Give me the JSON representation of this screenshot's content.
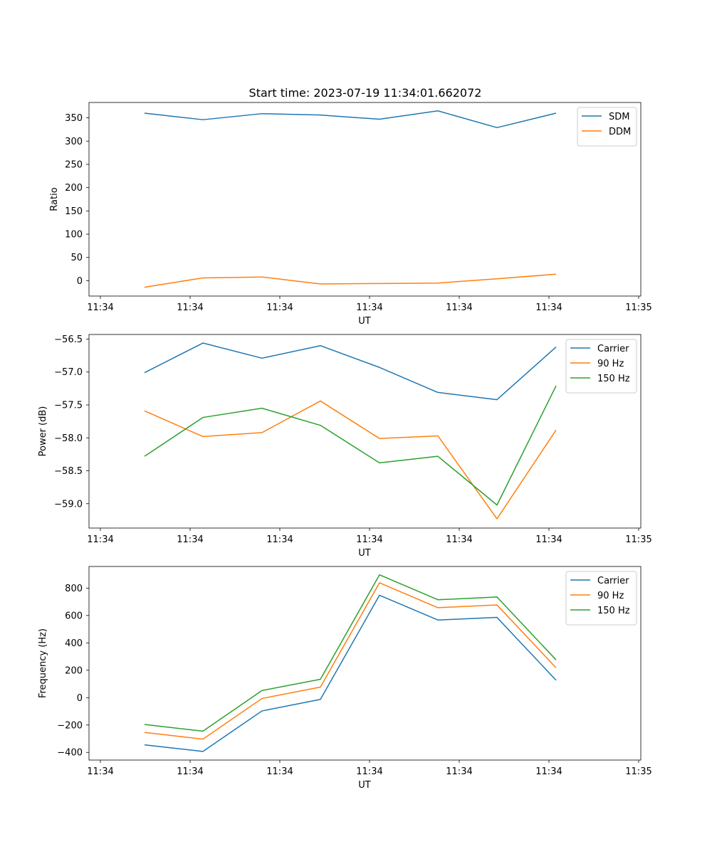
{
  "figure_title": "Start time: 2023-07-19 11:34:01.662072",
  "chart_data": [
    {
      "type": "line",
      "title": "Start time: 2023-07-19 11:34:01.662072",
      "xlabel": "UT",
      "ylabel": "Ratio",
      "x_tick_labels": [
        "11:34",
        "11:34",
        "11:34",
        "11:34",
        "11:34",
        "11:34",
        "11:35"
      ],
      "y_ticks": [
        0,
        50,
        100,
        150,
        200,
        250,
        300,
        350
      ],
      "y_tick_labels": [
        "0",
        "50",
        "100",
        "150",
        "200",
        "250",
        "300",
        "350"
      ],
      "ylim": [
        -33,
        383
      ],
      "legend_position": "top-right",
      "series": [
        {
          "name": "SDM",
          "color": "#1f77b4",
          "values": [
            360,
            346,
            359,
            356,
            347,
            365,
            329,
            360
          ]
        },
        {
          "name": "DDM",
          "color": "#ff7f0e",
          "values": [
            -14,
            6,
            8,
            -7,
            -6,
            -5,
            4,
            14
          ]
        }
      ]
    },
    {
      "type": "line",
      "title": "",
      "xlabel": "UT",
      "ylabel": "Power (dB)",
      "x_tick_labels": [
        "11:34",
        "11:34",
        "11:34",
        "11:34",
        "11:34",
        "11:34",
        "11:35"
      ],
      "y_ticks": [
        -59.0,
        -58.5,
        -58.0,
        -57.5,
        -57.0,
        -56.5
      ],
      "y_tick_labels": [
        "−59.0",
        "−58.5",
        "−58.0",
        "−57.5",
        "−57.0",
        "−56.5"
      ],
      "ylim": [
        -59.37,
        -56.43
      ],
      "legend_position": "top-right",
      "series": [
        {
          "name": "Carrier",
          "color": "#1f77b4",
          "values": [
            -57.01,
            -56.56,
            -56.79,
            -56.6,
            -56.93,
            -57.31,
            -57.42,
            -56.62
          ]
        },
        {
          "name": "90 Hz",
          "color": "#ff7f0e",
          "values": [
            -57.59,
            -57.98,
            -57.92,
            -57.44,
            -58.01,
            -57.97,
            -59.23,
            -57.88
          ]
        },
        {
          "name": "150 Hz",
          "color": "#2ca02c",
          "values": [
            -58.28,
            -57.69,
            -57.55,
            -57.81,
            -58.38,
            -58.28,
            -59.02,
            -57.21
          ]
        }
      ]
    },
    {
      "type": "line",
      "title": "",
      "xlabel": "UT",
      "ylabel": "Frequency (Hz)",
      "x_tick_labels": [
        "11:34",
        "11:34",
        "11:34",
        "11:34",
        "11:34",
        "11:34",
        "11:35"
      ],
      "y_ticks": [
        -400,
        -200,
        0,
        200,
        400,
        600,
        800
      ],
      "y_tick_labels": [
        "−400",
        "−200",
        "0",
        "200",
        "400",
        "600",
        "800"
      ],
      "ylim": [
        -456,
        958
      ],
      "legend_position": "top-right",
      "series": [
        {
          "name": "Carrier",
          "color": "#1f77b4",
          "values": [
            -345,
            -393,
            -97,
            -13,
            748,
            567,
            586,
            127
          ]
        },
        {
          "name": "90 Hz",
          "color": "#ff7f0e",
          "values": [
            -254,
            -303,
            -6,
            77,
            839,
            657,
            677,
            218
          ]
        },
        {
          "name": "150 Hz",
          "color": "#2ca02c",
          "values": [
            -196,
            -245,
            52,
            134,
            897,
            715,
            735,
            276
          ]
        }
      ]
    }
  ]
}
